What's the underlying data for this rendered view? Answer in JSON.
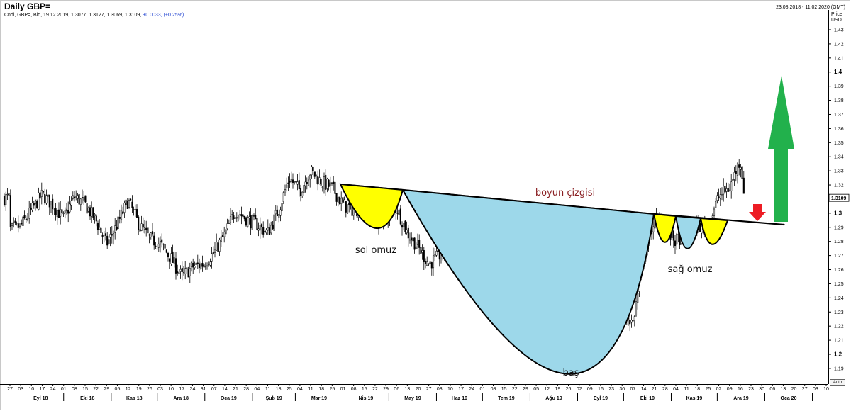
{
  "title": "Daily GBP=",
  "subtitle": "Cndl, GBP=, Bid, 19.12.2019, 1.3077, 1.3127, 1.3069, 1.3109, ",
  "subtitle_change": "+0.0033, (+0.25%)",
  "date_range": "23.08.2018 - 11.02.2020 (GMT)",
  "price_axis_header": [
    "Price",
    "USD"
  ],
  "last_price_label": "1.3109",
  "auto_button": "Auto",
  "chart_data": {
    "type": "candlestick",
    "title": "Daily GBP=",
    "x_range": [
      "2018-08-23",
      "2020-02-11"
    ],
    "ylim": [
      1.185,
      1.435
    ],
    "y_ticks": [
      "1.43",
      "1.42",
      "1.41",
      "1.4",
      "1.39",
      "1.38",
      "1.37",
      "1.36",
      "1.35",
      "1.34",
      "1.33",
      "1.32",
      "1.31",
      "1.3",
      "1.29",
      "1.28",
      "1.27",
      "1.26",
      "1.25",
      "1.24",
      "1.23",
      "1.22",
      "1.21",
      "1.2",
      "1.19"
    ],
    "y_ticks_bold": [
      "1.4",
      "1.3",
      "1.2"
    ],
    "day_ticks": [
      "27",
      "03",
      "10",
      "17",
      "24",
      "01",
      "08",
      "15",
      "22",
      "29",
      "05",
      "12",
      "19",
      "26",
      "03",
      "10",
      "17",
      "24",
      "31",
      "07",
      "14",
      "21",
      "28",
      "04",
      "11",
      "18",
      "25",
      "04",
      "11",
      "18",
      "25",
      "01",
      "08",
      "15",
      "22",
      "29",
      "06",
      "13",
      "20",
      "27",
      "03",
      "10",
      "17",
      "24",
      "01",
      "08",
      "15",
      "22",
      "29",
      "05",
      "12",
      "19",
      "26",
      "02",
      "09",
      "16",
      "23",
      "30",
      "07",
      "14",
      "21",
      "28",
      "04",
      "11",
      "18",
      "25",
      "02",
      "09",
      "16",
      "23",
      "30",
      "06",
      "13",
      "20",
      "27",
      "03",
      "10"
    ],
    "months": [
      "Eyl 18",
      "Eki 18",
      "Kas 18",
      "Ara 18",
      "Oca 19",
      "Şub 19",
      "Mar 19",
      "Nis 19",
      "May 19",
      "Haz 19",
      "Tem 19",
      "Ağu 19",
      "Eyl 19",
      "Eki 19",
      "Kas 19",
      "Ara 19",
      "Oca 20"
    ],
    "close_path": [
      [
        "2018-08-27",
        1.288
      ],
      [
        "2018-09-03",
        1.291
      ],
      [
        "2018-09-10",
        1.302
      ],
      [
        "2018-09-17",
        1.313
      ],
      [
        "2018-09-24",
        1.306
      ],
      [
        "2018-10-01",
        1.296
      ],
      [
        "2018-10-08",
        1.312
      ],
      [
        "2018-10-15",
        1.306
      ],
      [
        "2018-10-22",
        1.295
      ],
      [
        "2018-10-29",
        1.278
      ],
      [
        "2018-11-05",
        1.292
      ],
      [
        "2018-11-12",
        1.309
      ],
      [
        "2018-11-19",
        1.292
      ],
      [
        "2018-11-26",
        1.282
      ],
      [
        "2018-12-03",
        1.278
      ],
      [
        "2018-12-10",
        1.268
      ],
      [
        "2018-12-17",
        1.255
      ],
      [
        "2018-12-24",
        1.262
      ],
      [
        "2018-12-31",
        1.264
      ],
      [
        "2019-01-07",
        1.272
      ],
      [
        "2019-01-14",
        1.285
      ],
      [
        "2019-01-21",
        1.302
      ],
      [
        "2019-01-28",
        1.296
      ],
      [
        "2019-02-04",
        1.292
      ],
      [
        "2019-02-11",
        1.286
      ],
      [
        "2019-02-18",
        1.302
      ],
      [
        "2019-02-25",
        1.325
      ],
      [
        "2019-03-04",
        1.316
      ],
      [
        "2019-03-11",
        1.33
      ],
      [
        "2019-03-18",
        1.322
      ],
      [
        "2019-03-25",
        1.318
      ],
      [
        "2019-04-01",
        1.306
      ],
      [
        "2019-04-08",
        1.302
      ],
      [
        "2019-04-15",
        1.304
      ],
      [
        "2019-04-22",
        1.292
      ],
      [
        "2019-04-29",
        1.298
      ],
      [
        "2019-05-06",
        1.304
      ],
      [
        "2019-05-13",
        1.286
      ],
      [
        "2019-05-20",
        1.276
      ],
      [
        "2019-05-27",
        1.264
      ],
      [
        "2019-06-03",
        1.27
      ],
      [
        "2019-06-10",
        1.272
      ],
      [
        "2019-06-17",
        1.26
      ],
      [
        "2019-06-24",
        1.272
      ],
      [
        "2019-07-01",
        1.256
      ],
      [
        "2019-07-08",
        1.252
      ],
      [
        "2019-07-15",
        1.246
      ],
      [
        "2019-07-22",
        1.248
      ],
      [
        "2019-07-29",
        1.218
      ],
      [
        "2019-08-05",
        1.212
      ],
      [
        "2019-08-12",
        1.205
      ],
      [
        "2019-08-19",
        1.226
      ],
      [
        "2019-08-26",
        1.222
      ],
      [
        "2019-09-02",
        1.212
      ],
      [
        "2019-09-09",
        1.234
      ],
      [
        "2019-09-16",
        1.248
      ],
      [
        "2019-09-23",
        1.238
      ],
      [
        "2019-09-30",
        1.232
      ],
      [
        "2019-10-07",
        1.222
      ],
      [
        "2019-10-14",
        1.268
      ],
      [
        "2019-10-21",
        1.296
      ],
      [
        "2019-10-28",
        1.288
      ],
      [
        "2019-11-04",
        1.28
      ],
      [
        "2019-11-11",
        1.286
      ],
      [
        "2019-11-18",
        1.29
      ],
      [
        "2019-11-25",
        1.292
      ],
      [
        "2019-12-02",
        1.312
      ],
      [
        "2019-12-09",
        1.318
      ],
      [
        "2019-12-16",
        1.338
      ],
      [
        "2019-12-19",
        1.3109
      ]
    ],
    "annotations": {
      "neckline": "boyun çizgisi",
      "left_shoulder": "sol omuz",
      "head": "baş",
      "right_shoulder": "sağ omuz"
    },
    "colors": {
      "shoulder_fill": "#ffff00",
      "head_fill": "#9dd8ea",
      "up_arrow": "#22b14c",
      "down_arrow": "#ed1c24",
      "neckline_text": "#8a1f22"
    }
  }
}
